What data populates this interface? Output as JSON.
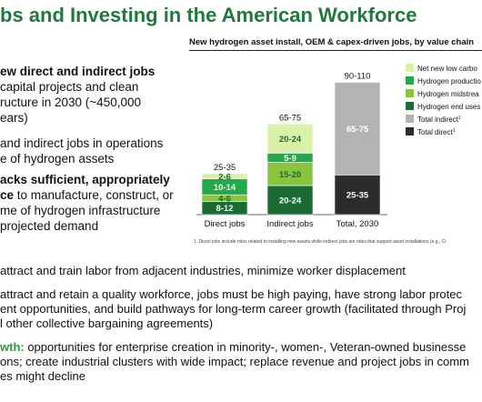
{
  "title": "bs and Investing in the American Workforce",
  "left": {
    "p1_bold": "ew direct and indirect jobs",
    "p1_lines": [
      "capital projects and clean",
      "ructure in 2030 (~450,000",
      "ears)"
    ],
    "p2_lines": [
      "and indirect jobs in operations",
      "e of hydrogen assets"
    ],
    "p3_bold_lines": [
      "acks sufficient, appropriately",
      "ce"
    ],
    "p3_rest": " to manufacture, construct, or",
    "p3_lines": [
      "me of hydrogen infrastructure",
      "projected demand"
    ]
  },
  "chart_title": "New hydrogen asset install, OEM & capex-driven jobs, by value chain",
  "footnote": "1.   Direct jobs include roles related to installing new assets while indirect jobs are roles that support asset installations (e.g., Ci",
  "chart_data": {
    "type": "bar",
    "stacked": true,
    "categories": [
      "Direct jobs",
      "Indirect jobs",
      "Total, 2030"
    ],
    "totals": [
      "25-35",
      "65-75",
      "90-110"
    ],
    "series": [
      {
        "name": "Hydrogen end uses",
        "color": "#1c6b34",
        "labels": [
          "8-12",
          "20-24",
          null
        ],
        "values": [
          10,
          22,
          0
        ]
      },
      {
        "name": "Hydrogen midstream",
        "color": "#8ac43f",
        "labels": [
          "4-6",
          "15-20",
          null
        ],
        "values": [
          5,
          17.5,
          0
        ]
      },
      {
        "name": "Hydrogen production",
        "color": "#23a84b",
        "labels": [
          "10-14",
          "5-9",
          null
        ],
        "values": [
          12,
          7,
          0
        ]
      },
      {
        "name": "Net new low carbon",
        "color": "#d9f2a8",
        "labels": [
          "2-6",
          "20-24",
          null
        ],
        "values": [
          4,
          22,
          0
        ]
      },
      {
        "name": "Total direct",
        "color": "#2b2b2b",
        "labels": [
          null,
          null,
          "25-35"
        ],
        "values": [
          0,
          0,
          30
        ]
      },
      {
        "name": "Total indirect",
        "color": "#b3b3b3",
        "labels": [
          null,
          null,
          "65-75"
        ],
        "values": [
          0,
          0,
          70
        ]
      }
    ],
    "legend_order": [
      {
        "label": "Net new low carbo",
        "color": "#d9f2a8"
      },
      {
        "label": "Hydrogen productio",
        "color": "#23a84b"
      },
      {
        "label": "Hydrogen midstrea",
        "color": "#8ac43f"
      },
      {
        "label": "Hydrogen end uses",
        "color": "#1c6b34"
      },
      {
        "label": "Total indirect",
        "sup": "1",
        "color": "#b3b3b3"
      },
      {
        "label": "Total direct",
        "sup": "1",
        "color": "#2b2b2b"
      }
    ],
    "legend_position": "right",
    "ylim": [
      0,
      110
    ],
    "grid": false
  },
  "bullets": [
    {
      "lines": [
        "attract and train labor from adjacent industries, minimize worker displacement"
      ]
    },
    {
      "lines": [
        "attract and retain a quality workforce, jobs must be high paying, have strong labor protec",
        "ent opportunities, and build pathways for long-term career growth (facilitated through Proj",
        "l other collective bargaining agreements)"
      ]
    },
    {
      "hl": "wth:",
      "lines": [
        " opportunities for enterprise creation in minority-, women-, Veteran-owned businesse",
        "ons; create industrial clusters with wide impact; replace revenue and project jobs in comm",
        "es might decline"
      ]
    }
  ]
}
